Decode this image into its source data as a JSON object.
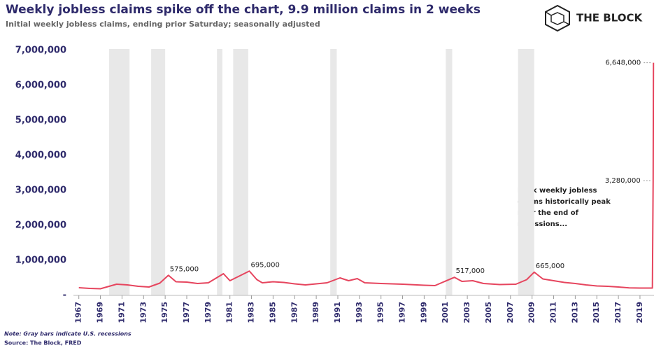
{
  "chart_data": {
    "type": "line",
    "title": "Weekly jobless claims spike off the chart, 9.9 million claims in 2 weeks",
    "subtitle": "Initial weekly jobless claims, ending prior Saturday; seasonally adjusted",
    "brand": "THE BLOCK",
    "note": "Note: Gray bars indicate U.S. recessions",
    "source": "Source: The Block, FRED",
    "callout": [
      "Peak weekly jobless",
      "claims historically peak",
      "near the end of",
      "recessions..."
    ],
    "xlim": [
      1966.5,
      2020.3
    ],
    "xticks": [
      1967,
      1969,
      1971,
      1973,
      1975,
      1977,
      1979,
      1981,
      1983,
      1985,
      1987,
      1989,
      1991,
      1993,
      1995,
      1997,
      1999,
      2001,
      2003,
      2005,
      2007,
      2009,
      2011,
      2013,
      2015,
      2017,
      2019
    ],
    "ylim": [
      0,
      7000000
    ],
    "yticks": [
      {
        "value": 0,
        "label": "-"
      },
      {
        "value": 1000000,
        "label": "1,000,000"
      },
      {
        "value": 2000000,
        "label": "2,000,000"
      },
      {
        "value": 3000000,
        "label": "3,000,000"
      },
      {
        "value": 4000000,
        "label": "4,000,000"
      },
      {
        "value": 5000000,
        "label": "5,000,000"
      },
      {
        "value": 6000000,
        "label": "6,000,000"
      },
      {
        "value": 7000000,
        "label": "7,000,000"
      }
    ],
    "recessions": [
      [
        1969.8,
        1971.7
      ],
      [
        1973.7,
        1975.0
      ],
      [
        1979.8,
        1980.3
      ],
      [
        1981.3,
        1982.7
      ],
      [
        1990.3,
        1990.9
      ],
      [
        2001.0,
        2001.6
      ],
      [
        2007.7,
        2009.2
      ]
    ],
    "series": [
      {
        "name": "Initial claims",
        "color": "#e6455e",
        "x": [
          1967,
          1968,
          1969,
          1970.5,
          1971.5,
          1972.5,
          1973.5,
          1974.5,
          1975.3,
          1976,
          1977,
          1978,
          1979,
          1980.4,
          1981,
          1982.8,
          1983.5,
          1984,
          1985,
          1986,
          1987,
          1988,
          1989,
          1990,
          1991.2,
          1992,
          1992.8,
          1993.5,
          1995,
          1997,
          1999,
          2000,
          2001.8,
          2002.5,
          2003.5,
          2004.5,
          2006,
          2007.5,
          2008.5,
          2009.2,
          2010,
          2011,
          2012,
          2013,
          2014,
          2015,
          2016,
          2017,
          2018,
          2019,
          2020.15,
          2020.22,
          2020.25
        ],
        "values": [
          220000,
          200000,
          190000,
          320000,
          300000,
          260000,
          240000,
          350000,
          575000,
          390000,
          380000,
          340000,
          360000,
          620000,
          420000,
          695000,
          450000,
          360000,
          390000,
          370000,
          330000,
          300000,
          330000,
          360000,
          500000,
          420000,
          480000,
          360000,
          340000,
          320000,
          290000,
          280000,
          517000,
          400000,
          420000,
          340000,
          310000,
          320000,
          450000,
          665000,
          470000,
          420000,
          370000,
          340000,
          300000,
          270000,
          260000,
          240000,
          215000,
          210000,
          211000,
          3280000,
          6648000
        ]
      }
    ],
    "annotations": [
      {
        "x": 1975.3,
        "value": 575000,
        "label": "575,000"
      },
      {
        "x": 1982.8,
        "value": 695000,
        "label": "695,000"
      },
      {
        "x": 2001.8,
        "value": 517000,
        "label": "517,000"
      },
      {
        "x": 2009.2,
        "value": 665000,
        "label": "665,000"
      },
      {
        "x": 2020.22,
        "value": 3280000,
        "label": "3,280,000"
      },
      {
        "x": 2020.25,
        "value": 6648000,
        "label": "6,648,000"
      }
    ]
  }
}
